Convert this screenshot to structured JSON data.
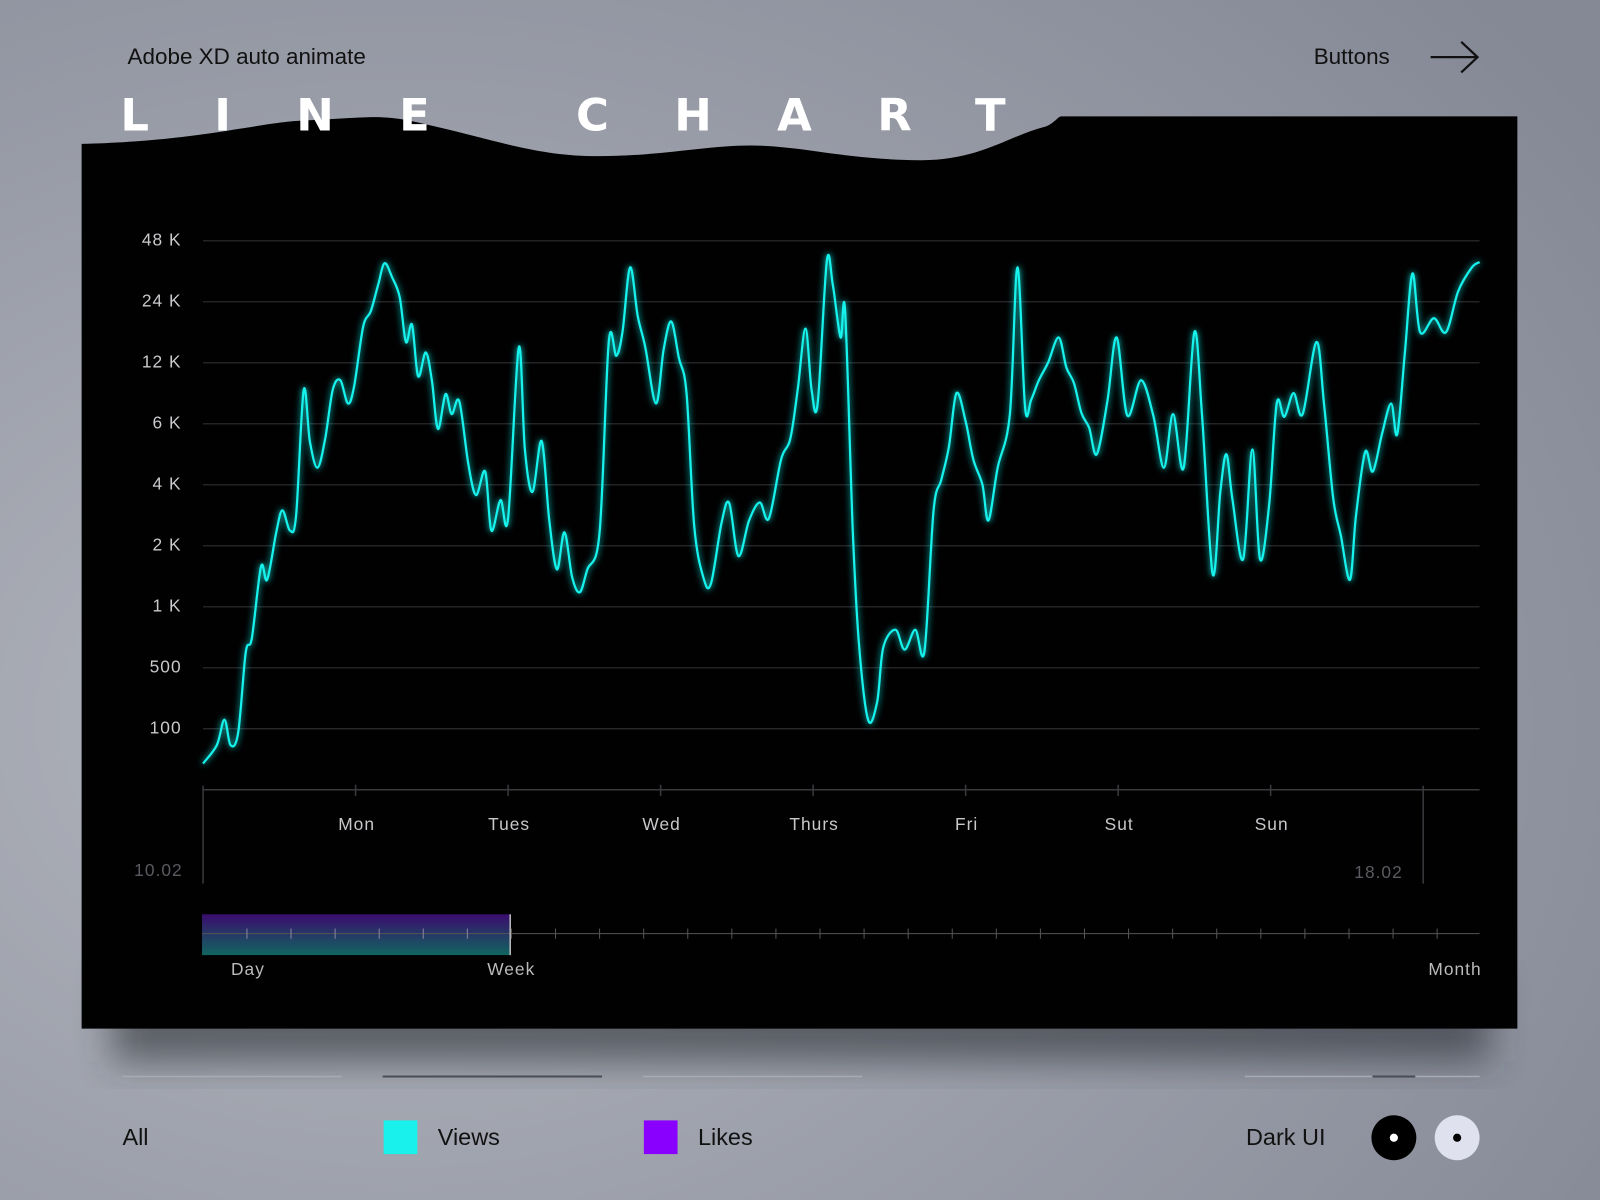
{
  "header": {
    "left": "Adobe XD auto animate",
    "right": "Buttons"
  },
  "chart_data": {
    "type": "line",
    "title": "LINE CHART",
    "x": [
      0,
      0.09,
      0.14,
      0.18,
      0.23,
      0.28,
      0.32,
      0.38,
      0.42,
      0.48,
      0.52,
      0.57,
      0.61,
      0.66,
      0.7,
      0.75,
      0.8,
      0.85,
      0.9,
      0.95,
      0.99,
      1.05,
      1.1,
      1.15,
      1.19,
      1.24,
      1.29,
      1.33,
      1.37,
      1.41,
      1.46,
      1.5,
      1.54,
      1.59,
      1.63,
      1.68,
      1.74,
      1.79,
      1.85,
      1.89,
      1.95,
      2,
      2.07,
      2.11,
      2.16,
      2.22,
      2.27,
      2.32,
      2.37,
      2.42,
      2.47,
      2.52,
      2.6,
      2.66,
      2.71,
      2.75,
      2.8,
      2.85,
      2.9,
      2.97,
      3.02,
      3.07,
      3.12,
      3.17,
      3.22,
      3.28,
      3.33,
      3.4,
      3.45,
      3.51,
      3.58,
      3.65,
      3.71,
      3.79,
      3.85,
      3.9,
      3.95,
      3.99,
      4.03,
      4.09,
      4.13,
      4.18,
      4.21,
      4.26,
      4.3,
      4.36,
      4.42,
      4.46,
      4.54,
      4.6,
      4.67,
      4.73,
      4.79,
      4.84,
      4.89,
      4.94,
      5,
      5.05,
      5.11,
      5.15,
      5.21,
      5.29,
      5.34,
      5.39,
      5.43,
      5.48,
      5.54,
      5.61,
      5.66,
      5.71,
      5.76,
      5.81,
      5.86,
      5.93,
      5.99,
      6.06,
      6.15,
      6.23,
      6.3,
      6.36,
      6.43,
      6.5,
      6.55,
      6.62,
      6.67,
      6.71,
      6.75,
      6.82,
      6.88,
      6.93,
      6.99,
      7.04,
      7.09,
      7.15,
      7.21,
      7.3,
      7.35,
      7.41,
      7.46,
      7.52,
      7.56,
      7.62,
      7.67,
      7.73,
      7.79,
      7.83,
      7.88,
      7.93,
      7.98,
      8.07,
      8.15,
      8.23,
      8.32,
      8.37
    ],
    "series": [
      {
        "name": "Views",
        "color": "#19f2ec",
        "values": [
          40,
          65,
          127,
          65,
          90,
          595,
          700,
          1580,
          1360,
          2330,
          2990,
          2380,
          2830,
          8800,
          5350,
          4480,
          5420,
          8800,
          9850,
          7560,
          9170,
          18100,
          21600,
          29500,
          37200,
          31700,
          25200,
          15200,
          18500,
          10300,
          13500,
          9850,
          5800,
          8400,
          6700,
          7750,
          4570,
          3560,
          4370,
          2380,
          3360,
          2730,
          14300,
          5060,
          3690,
          5350,
          2670,
          1530,
          2330,
          1400,
          1180,
          1530,
          2330,
          15200,
          13000,
          17000,
          35500,
          20400,
          14300,
          7560,
          14000,
          19200,
          12700,
          8500,
          2520,
          1400,
          1300,
          2610,
          3250,
          1780,
          2670,
          3270,
          2730,
          4740,
          5420,
          8970,
          17700,
          8800,
          7560,
          38100,
          28800,
          16000,
          21600,
          2380,
          665,
          127,
          203,
          630,
          770,
          615,
          770,
          605,
          2990,
          4130,
          5140,
          8500,
          6170,
          4740,
          4000,
          2670,
          4480,
          6700,
          35500,
          7210,
          7900,
          9850,
          12000,
          16000,
          11400,
          9550,
          6760,
          5840,
          4900,
          7800,
          16000,
          6600,
          9850,
          6600,
          4480,
          6700,
          4480,
          17000,
          6600,
          1450,
          3690,
          4900,
          3360,
          1720,
          5060,
          1720,
          3170,
          7560,
          6500,
          8500,
          6700,
          15200,
          7560,
          3440,
          2250,
          1360,
          2830,
          4980,
          4370,
          5600,
          7560,
          5600,
          13500,
          33100,
          17000,
          19900,
          17000,
          27100,
          35500,
          37700
        ]
      }
    ],
    "xlim": [
      0,
      8.37
    ],
    "xticks": [
      {
        "value": 0,
        "label": "10.02"
      },
      {
        "value": 1,
        "label": "Mon"
      },
      {
        "value": 2,
        "label": "Tues"
      },
      {
        "value": 3,
        "label": "Wed"
      },
      {
        "value": 4,
        "label": "Thurs"
      },
      {
        "value": 5,
        "label": "Fri"
      },
      {
        "value": 6,
        "label": "Sut"
      },
      {
        "value": 7,
        "label": "Sun"
      },
      {
        "value": 8,
        "label": "18.02"
      }
    ],
    "ylim": [
      20,
      48000
    ],
    "yticks": [
      100,
      500,
      {
        "value": 1000,
        "label": "1 K"
      },
      {
        "value": 2000,
        "label": "2 K"
      },
      {
        "value": 4000,
        "label": "4 K"
      },
      {
        "value": 6000,
        "label": "6 K"
      },
      {
        "value": 12000,
        "label": "12 K"
      },
      {
        "value": 24000,
        "label": "24 K"
      },
      {
        "value": 48000,
        "label": "48 K"
      }
    ],
    "grid": true
  },
  "range_selector": {
    "labels": [
      "Day",
      "Week",
      "Month"
    ]
  },
  "filters": {
    "all": "All",
    "likes": {
      "label": "Likes",
      "color": "#8a00ff"
    }
  },
  "theme": {
    "label": "Dark UI"
  }
}
